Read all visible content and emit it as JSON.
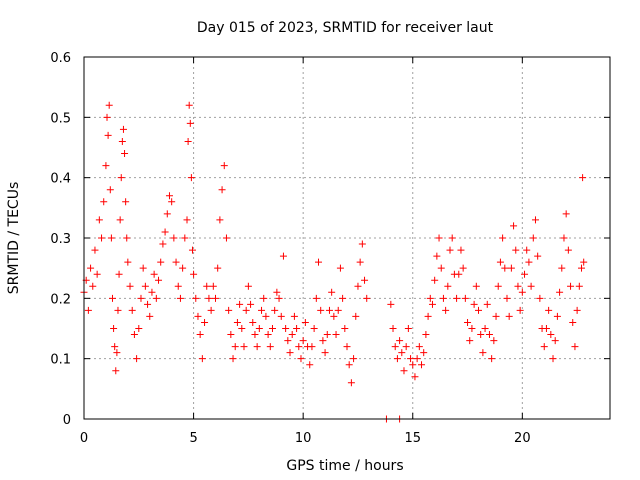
{
  "chart_data": {
    "type": "scatter",
    "title": "Day 015 of 2023, SRMTID for receiver laut",
    "xlabel": "GPS time / hours",
    "ylabel": "SRMTID / TECUs",
    "xlim": [
      0,
      24
    ],
    "ylim": [
      0,
      0.6
    ],
    "xticks": [
      0,
      5,
      10,
      15,
      20
    ],
    "xtick_labels": [
      "0",
      "5",
      "10",
      "15",
      "20"
    ],
    "yticks": [
      0,
      0.1,
      0.2,
      0.3,
      0.4,
      0.5,
      0.6
    ],
    "ytick_labels": [
      "0",
      "0.1",
      "0.2",
      "0.3",
      "0.4",
      "0.5",
      "0.6"
    ],
    "grid": true,
    "marker": "plus",
    "color": "#ff0000",
    "series": [
      {
        "name": "SRMTID",
        "points": [
          [
            0.0,
            0.21
          ],
          [
            0.1,
            0.23
          ],
          [
            0.2,
            0.18
          ],
          [
            0.3,
            0.25
          ],
          [
            0.4,
            0.22
          ],
          [
            0.5,
            0.28
          ],
          [
            0.6,
            0.24
          ],
          [
            0.7,
            0.33
          ],
          [
            0.8,
            0.3
          ],
          [
            0.9,
            0.36
          ],
          [
            1.0,
            0.42
          ],
          [
            1.05,
            0.5
          ],
          [
            1.1,
            0.47
          ],
          [
            1.15,
            0.52
          ],
          [
            1.2,
            0.38
          ],
          [
            1.25,
            0.3
          ],
          [
            1.3,
            0.2
          ],
          [
            1.35,
            0.15
          ],
          [
            1.4,
            0.12
          ],
          [
            1.45,
            0.08
          ],
          [
            1.5,
            0.11
          ],
          [
            1.55,
            0.18
          ],
          [
            1.6,
            0.24
          ],
          [
            1.65,
            0.33
          ],
          [
            1.7,
            0.4
          ],
          [
            1.75,
            0.46
          ],
          [
            1.8,
            0.48
          ],
          [
            1.85,
            0.44
          ],
          [
            1.9,
            0.36
          ],
          [
            1.95,
            0.3
          ],
          [
            2.0,
            0.26
          ],
          [
            2.1,
            0.22
          ],
          [
            2.2,
            0.18
          ],
          [
            2.3,
            0.14
          ],
          [
            2.4,
            0.1
          ],
          [
            2.5,
            0.15
          ],
          [
            2.6,
            0.2
          ],
          [
            2.7,
            0.25
          ],
          [
            2.8,
            0.22
          ],
          [
            2.9,
            0.19
          ],
          [
            3.0,
            0.17
          ],
          [
            3.1,
            0.21
          ],
          [
            3.2,
            0.24
          ],
          [
            3.3,
            0.2
          ],
          [
            3.4,
            0.23
          ],
          [
            3.5,
            0.26
          ],
          [
            3.6,
            0.29
          ],
          [
            3.7,
            0.31
          ],
          [
            3.8,
            0.34
          ],
          [
            3.9,
            0.37
          ],
          [
            4.0,
            0.36
          ],
          [
            4.1,
            0.3
          ],
          [
            4.2,
            0.26
          ],
          [
            4.3,
            0.22
          ],
          [
            4.4,
            0.2
          ],
          [
            4.5,
            0.25
          ],
          [
            4.6,
            0.3
          ],
          [
            4.7,
            0.33
          ],
          [
            4.75,
            0.46
          ],
          [
            4.8,
            0.52
          ],
          [
            4.85,
            0.49
          ],
          [
            4.9,
            0.4
          ],
          [
            4.95,
            0.28
          ],
          [
            5.0,
            0.24
          ],
          [
            5.1,
            0.2
          ],
          [
            5.2,
            0.17
          ],
          [
            5.3,
            0.14
          ],
          [
            5.4,
            0.1
          ],
          [
            5.5,
            0.16
          ],
          [
            5.6,
            0.22
          ],
          [
            5.7,
            0.2
          ],
          [
            5.8,
            0.18
          ],
          [
            5.9,
            0.22
          ],
          [
            6.0,
            0.2
          ],
          [
            6.1,
            0.25
          ],
          [
            6.2,
            0.33
          ],
          [
            6.3,
            0.38
          ],
          [
            6.4,
            0.42
          ],
          [
            6.5,
            0.3
          ],
          [
            6.6,
            0.18
          ],
          [
            6.7,
            0.14
          ],
          [
            6.8,
            0.1
          ],
          [
            6.9,
            0.12
          ],
          [
            7.0,
            0.16
          ],
          [
            7.1,
            0.19
          ],
          [
            7.2,
            0.15
          ],
          [
            7.3,
            0.12
          ],
          [
            7.4,
            0.18
          ],
          [
            7.5,
            0.22
          ],
          [
            7.6,
            0.19
          ],
          [
            7.7,
            0.16
          ],
          [
            7.8,
            0.14
          ],
          [
            7.9,
            0.12
          ],
          [
            8.0,
            0.15
          ],
          [
            8.1,
            0.18
          ],
          [
            8.2,
            0.2
          ],
          [
            8.3,
            0.17
          ],
          [
            8.4,
            0.14
          ],
          [
            8.5,
            0.12
          ],
          [
            8.6,
            0.15
          ],
          [
            8.7,
            0.18
          ],
          [
            8.8,
            0.21
          ],
          [
            8.9,
            0.2
          ],
          [
            9.0,
            0.17
          ],
          [
            9.1,
            0.27
          ],
          [
            9.2,
            0.15
          ],
          [
            9.3,
            0.13
          ],
          [
            9.4,
            0.11
          ],
          [
            9.5,
            0.14
          ],
          [
            9.6,
            0.17
          ],
          [
            9.7,
            0.15
          ],
          [
            9.8,
            0.12
          ],
          [
            9.9,
            0.1
          ],
          [
            10.0,
            0.13
          ],
          [
            10.1,
            0.16
          ],
          [
            10.2,
            0.12
          ],
          [
            10.3,
            0.09
          ],
          [
            10.4,
            0.12
          ],
          [
            10.5,
            0.15
          ],
          [
            10.6,
            0.2
          ],
          [
            10.7,
            0.26
          ],
          [
            10.8,
            0.18
          ],
          [
            10.9,
            0.13
          ],
          [
            11.0,
            0.11
          ],
          [
            11.1,
            0.14
          ],
          [
            11.2,
            0.18
          ],
          [
            11.3,
            0.21
          ],
          [
            11.4,
            0.17
          ],
          [
            11.5,
            0.14
          ],
          [
            11.6,
            0.18
          ],
          [
            11.7,
            0.25
          ],
          [
            11.8,
            0.2
          ],
          [
            11.9,
            0.15
          ],
          [
            12.0,
            0.12
          ],
          [
            12.1,
            0.09
          ],
          [
            12.2,
            0.06
          ],
          [
            12.3,
            0.1
          ],
          [
            12.4,
            0.17
          ],
          [
            12.5,
            0.22
          ],
          [
            12.6,
            0.26
          ],
          [
            12.7,
            0.29
          ],
          [
            12.8,
            0.23
          ],
          [
            12.9,
            0.2
          ],
          [
            13.8,
            0.0
          ],
          [
            14.4,
            0.0
          ],
          [
            14.0,
            0.19
          ],
          [
            14.1,
            0.15
          ],
          [
            14.2,
            0.12
          ],
          [
            14.3,
            0.1
          ],
          [
            14.4,
            0.13
          ],
          [
            14.5,
            0.11
          ],
          [
            14.6,
            0.08
          ],
          [
            14.7,
            0.12
          ],
          [
            14.8,
            0.15
          ],
          [
            14.9,
            0.1
          ],
          [
            15.0,
            0.09
          ],
          [
            15.1,
            0.07
          ],
          [
            15.2,
            0.1
          ],
          [
            15.3,
            0.12
          ],
          [
            15.4,
            0.09
          ],
          [
            15.5,
            0.11
          ],
          [
            15.6,
            0.14
          ],
          [
            15.7,
            0.17
          ],
          [
            15.8,
            0.2
          ],
          [
            15.9,
            0.19
          ],
          [
            16.0,
            0.23
          ],
          [
            16.1,
            0.27
          ],
          [
            16.2,
            0.3
          ],
          [
            16.3,
            0.25
          ],
          [
            16.4,
            0.2
          ],
          [
            16.5,
            0.18
          ],
          [
            16.6,
            0.22
          ],
          [
            16.7,
            0.28
          ],
          [
            16.8,
            0.3
          ],
          [
            16.9,
            0.24
          ],
          [
            17.0,
            0.2
          ],
          [
            17.1,
            0.24
          ],
          [
            17.2,
            0.28
          ],
          [
            17.3,
            0.25
          ],
          [
            17.4,
            0.2
          ],
          [
            17.5,
            0.16
          ],
          [
            17.6,
            0.13
          ],
          [
            17.7,
            0.15
          ],
          [
            17.8,
            0.19
          ],
          [
            17.9,
            0.22
          ],
          [
            18.0,
            0.18
          ],
          [
            18.1,
            0.14
          ],
          [
            18.2,
            0.11
          ],
          [
            18.3,
            0.15
          ],
          [
            18.4,
            0.19
          ],
          [
            18.5,
            0.14
          ],
          [
            18.6,
            0.1
          ],
          [
            18.7,
            0.13
          ],
          [
            18.8,
            0.17
          ],
          [
            18.9,
            0.22
          ],
          [
            19.0,
            0.26
          ],
          [
            19.1,
            0.3
          ],
          [
            19.2,
            0.25
          ],
          [
            19.3,
            0.2
          ],
          [
            19.4,
            0.17
          ],
          [
            19.5,
            0.25
          ],
          [
            19.6,
            0.32
          ],
          [
            19.7,
            0.28
          ],
          [
            19.8,
            0.22
          ],
          [
            19.9,
            0.18
          ],
          [
            20.0,
            0.21
          ],
          [
            20.1,
            0.24
          ],
          [
            20.2,
            0.28
          ],
          [
            20.3,
            0.26
          ],
          [
            20.4,
            0.22
          ],
          [
            20.5,
            0.3
          ],
          [
            20.6,
            0.33
          ],
          [
            20.7,
            0.27
          ],
          [
            20.8,
            0.2
          ],
          [
            20.9,
            0.15
          ],
          [
            21.0,
            0.12
          ],
          [
            21.1,
            0.15
          ],
          [
            21.2,
            0.18
          ],
          [
            21.3,
            0.14
          ],
          [
            21.4,
            0.1
          ],
          [
            21.5,
            0.13
          ],
          [
            21.6,
            0.17
          ],
          [
            21.7,
            0.21
          ],
          [
            21.8,
            0.25
          ],
          [
            21.9,
            0.3
          ],
          [
            22.0,
            0.34
          ],
          [
            22.1,
            0.28
          ],
          [
            22.2,
            0.22
          ],
          [
            22.3,
            0.16
          ],
          [
            22.4,
            0.12
          ],
          [
            22.5,
            0.18
          ],
          [
            22.6,
            0.22
          ],
          [
            22.7,
            0.25
          ],
          [
            22.75,
            0.4
          ],
          [
            22.8,
            0.26
          ]
        ]
      }
    ]
  }
}
